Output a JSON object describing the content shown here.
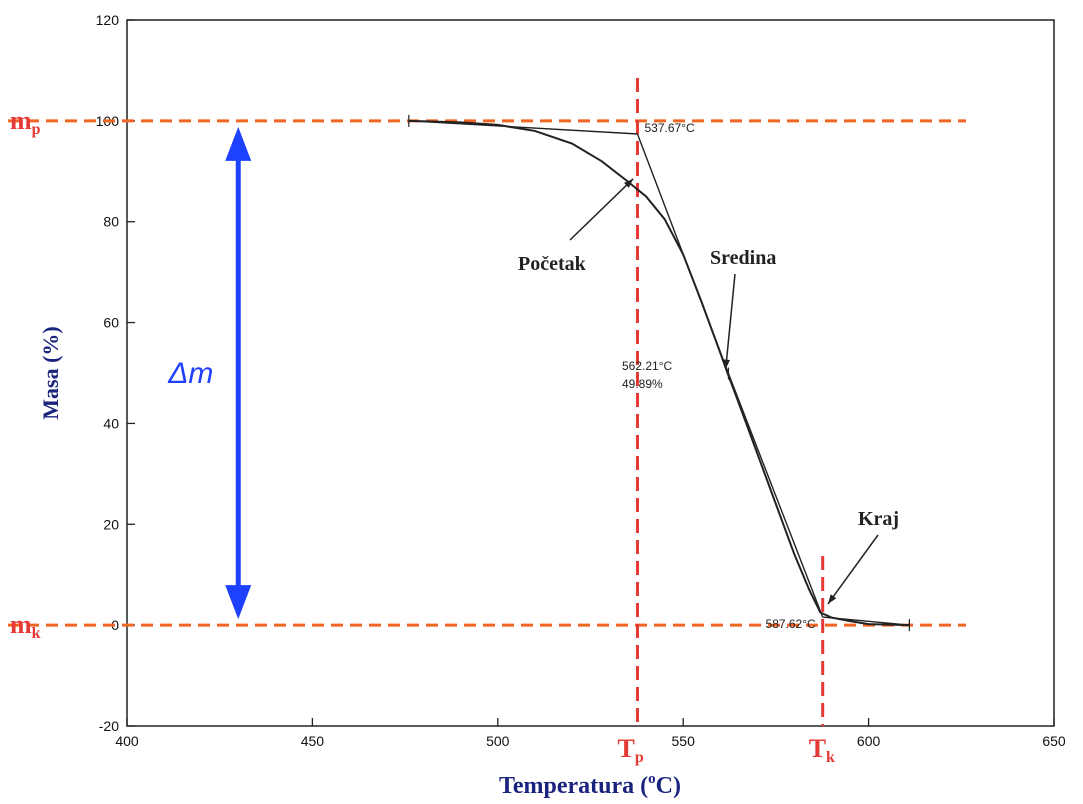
{
  "chart_data": {
    "type": "line",
    "title": "",
    "xlabel_main": "Temperatura (",
    "xlabel_unit": "o",
    "xlabel_end": "C)",
    "ylabel": "Masa (%)",
    "xlim": [
      400,
      650
    ],
    "ylim": [
      -20,
      120
    ],
    "x_ticks": [
      400,
      450,
      500,
      550,
      600,
      650
    ],
    "y_ticks": [
      -20,
      0,
      20,
      40,
      60,
      80,
      100,
      120
    ],
    "grid": false,
    "series": [
      {
        "values": [
          [
            476,
            100
          ],
          [
            490,
            99.7
          ],
          [
            500,
            99.2
          ],
          [
            510,
            98
          ],
          [
            520,
            95.5
          ],
          [
            528,
            92
          ],
          [
            535,
            88
          ],
          [
            540,
            85
          ],
          [
            545,
            80.5
          ],
          [
            550,
            73.5
          ],
          [
            555,
            64
          ],
          [
            560,
            54
          ],
          [
            562,
            49.9
          ],
          [
            565,
            44
          ],
          [
            570,
            34
          ],
          [
            575,
            24
          ],
          [
            580,
            14
          ],
          [
            584,
            7
          ],
          [
            587,
            2.5
          ],
          [
            590,
            1.5
          ],
          [
            595,
            0.8
          ],
          [
            600,
            0.2
          ],
          [
            611,
            0
          ]
        ]
      }
    ],
    "tangent_lines": [
      [
        [
          476,
          100
        ],
        [
          537.67,
          97.4
        ]
      ],
      [
        [
          537.67,
          97.4
        ],
        [
          562.21,
          49.89
        ]
      ],
      [
        [
          562.21,
          49.89
        ],
        [
          587.62,
          1.6
        ]
      ],
      [
        [
          587.62,
          1.6
        ],
        [
          611,
          0
        ]
      ]
    ],
    "point_labels": [
      {
        "text": "537.67°C",
        "x": 537.67,
        "y": 97.4
      },
      {
        "text": "562.21°C",
        "x": 562.21,
        "y": 49.89
      },
      {
        "text": "49.89%",
        "x": 562.21,
        "y": 49.89
      },
      {
        "text": "587.62°C",
        "x": 587.62,
        "y": 1.6
      }
    ],
    "annotations": [
      {
        "text": "Početak",
        "x": 536.5,
        "y": 88.5
      },
      {
        "text": "Sredina",
        "x": 562,
        "y": 50
      },
      {
        "text": "Kraj",
        "x": 588.5,
        "y": 5
      }
    ],
    "reference_lines": {
      "mp": {
        "label": "m",
        "sub": "p",
        "y": 100
      },
      "mk": {
        "label": "m",
        "sub": "k",
        "y": 0
      },
      "Tp": {
        "label": "T",
        "sub": "p",
        "x": 537.67
      },
      "Tk": {
        "label": "T",
        "sub": "k",
        "x": 587.62
      }
    },
    "delta": {
      "label": "Δm",
      "x": 430,
      "y_from": 0,
      "y_to": 100
    }
  },
  "colors": {
    "curve": "#222222",
    "reference": "#f26522",
    "marker_line": "#e53935",
    "delta_arrow": "#1e40ff",
    "axis_title": "#1a237e"
  }
}
